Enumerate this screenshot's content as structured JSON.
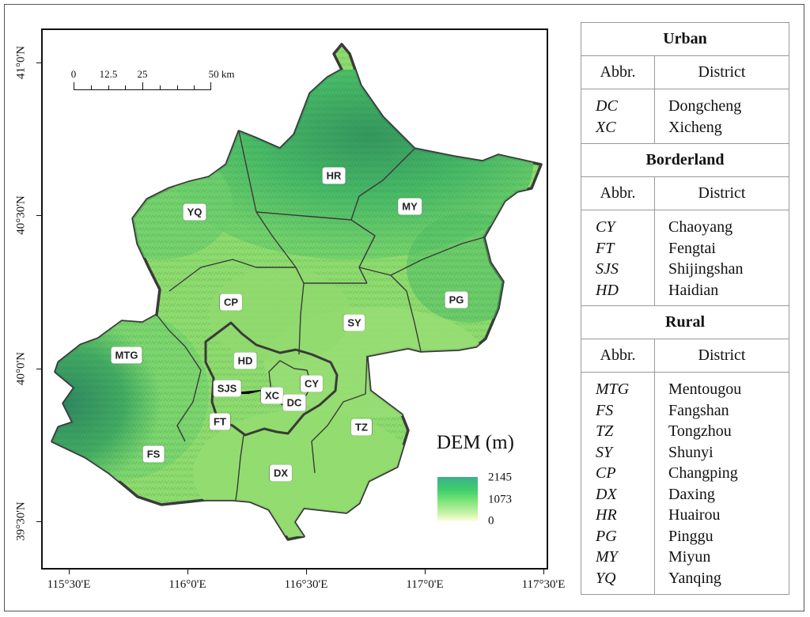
{
  "map": {
    "scale_bar": {
      "labels": [
        "0",
        "12.5",
        "25",
        "50 km"
      ]
    },
    "x_ticks": [
      "115°30'E",
      "116°0'E",
      "116°30'E",
      "117°0'E",
      "117°30'E"
    ],
    "y_ticks": [
      "41°0'N",
      "40°30'N",
      "40°0'N",
      "39°30'N"
    ],
    "district_labels": [
      "YQ",
      "HR",
      "MY",
      "CP",
      "SY",
      "PG",
      "MTG",
      "HD",
      "SJS",
      "XC",
      "CY",
      "DC",
      "FT",
      "TZ",
      "FS",
      "DX"
    ],
    "legend": {
      "title": "DEM (m)",
      "max": "2145",
      "mid": "1073",
      "min": "0",
      "colors": [
        "#3cb08a",
        "#3fcf6a",
        "#7ee57a",
        "#c9f3a8",
        "#ffffdc"
      ]
    },
    "colors": {
      "boundary": "#3a3a3a",
      "plain": "#8fdc6e",
      "mountain": "#2f9a5a"
    }
  },
  "table": {
    "column_headers": {
      "abbr": "Abbr.",
      "district": "District"
    },
    "groups": [
      {
        "title": "Urban",
        "abbrs": [
          "DC",
          "XC"
        ],
        "names": [
          "Dongcheng",
          "Xicheng"
        ]
      },
      {
        "title": "Borderland",
        "abbrs": [
          "CY",
          "FT",
          "SJS",
          "HD"
        ],
        "names": [
          "Chaoyang",
          "Fengtai",
          "Shijingshan",
          "Haidian"
        ]
      },
      {
        "title": "Rural",
        "abbrs": [
          "MTG",
          "FS",
          "TZ",
          "SY",
          "CP",
          "DX",
          "HR",
          "PG",
          "MY",
          "YQ"
        ],
        "names": [
          "Mentougou",
          "Fangshan",
          "Tongzhou",
          "Shunyi",
          "Changping",
          "Daxing",
          "Huairou",
          "Pinggu",
          "Miyun",
          "Yanqing"
        ]
      }
    ]
  }
}
